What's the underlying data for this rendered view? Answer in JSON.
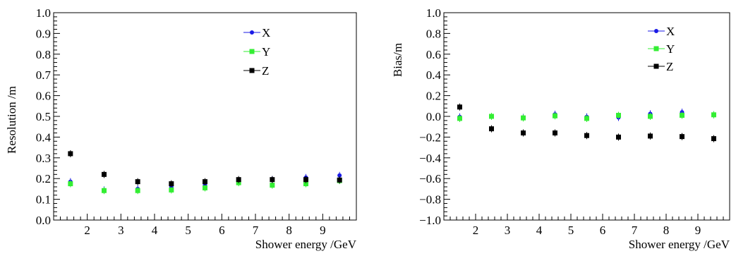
{
  "chart_data": [
    {
      "type": "scatter",
      "title": "",
      "xlabel": "Shower energy /GeV",
      "ylabel": "Resolution /m",
      "xlim": [
        1.0,
        10.0
      ],
      "ylim": [
        0.0,
        1.0
      ],
      "x_ticks": [
        "2",
        "3",
        "4",
        "5",
        "6",
        "7",
        "8",
        "9"
      ],
      "y_ticks": [
        "0.0",
        "0.1",
        "0.2",
        "0.3",
        "0.4",
        "0.5",
        "0.6",
        "0.7",
        "0.8",
        "0.9",
        "1.0"
      ],
      "grid": false,
      "legend_position": "top-right",
      "series": [
        {
          "name": "X",
          "color": "#1a1ae6",
          "marker": "circle",
          "x": [
            1.5,
            2.5,
            3.5,
            4.5,
            5.5,
            6.5,
            7.5,
            8.5,
            9.5
          ],
          "y": [
            0.185,
            0.145,
            0.15,
            0.16,
            0.17,
            0.185,
            0.195,
            0.205,
            0.215
          ]
        },
        {
          "name": "Y",
          "color": "#33ee33",
          "marker": "square",
          "x": [
            1.5,
            2.5,
            3.5,
            4.5,
            5.5,
            6.5,
            7.5,
            8.5,
            9.5
          ],
          "y": [
            0.175,
            0.142,
            0.142,
            0.145,
            0.155,
            0.18,
            0.168,
            0.175,
            0.19
          ]
        },
        {
          "name": "Z",
          "color": "#000000",
          "marker": "square",
          "x": [
            1.5,
            2.5,
            3.5,
            4.5,
            5.5,
            6.5,
            7.5,
            8.5,
            9.5
          ],
          "y": [
            0.32,
            0.22,
            0.185,
            0.175,
            0.185,
            0.195,
            0.195,
            0.195,
            0.193
          ]
        }
      ]
    },
    {
      "type": "scatter",
      "title": "",
      "xlabel": "Shower energy /GeV",
      "ylabel": "Bias/m",
      "xlim": [
        1.0,
        10.0
      ],
      "ylim": [
        -1.0,
        1.0
      ],
      "x_ticks": [
        "2",
        "3",
        "4",
        "5",
        "6",
        "7",
        "8",
        "9"
      ],
      "y_ticks": [
        "−1.0",
        "−0.8",
        "−0.6",
        "−0.4",
        "−0.2",
        "0.0",
        "0.2",
        "0.4",
        "0.6",
        "0.8",
        "1.0"
      ],
      "grid": false,
      "legend_position": "top-right",
      "series": [
        {
          "name": "X",
          "color": "#1a1ae6",
          "marker": "circle",
          "x": [
            1.5,
            2.5,
            3.5,
            4.5,
            5.5,
            6.5,
            7.5,
            8.5,
            9.5
          ],
          "y": [
            -0.005,
            0.0,
            -0.01,
            0.02,
            -0.005,
            -0.01,
            0.025,
            0.04,
            0.015
          ]
        },
        {
          "name": "Y",
          "color": "#33ee33",
          "marker": "square",
          "x": [
            1.5,
            2.5,
            3.5,
            4.5,
            5.5,
            6.5,
            7.5,
            8.5,
            9.5
          ],
          "y": [
            -0.02,
            0.0,
            -0.015,
            0.005,
            -0.02,
            0.01,
            0.0,
            0.01,
            0.015
          ]
        },
        {
          "name": "Z",
          "color": "#000000",
          "marker": "square",
          "x": [
            1.5,
            2.5,
            3.5,
            4.5,
            5.5,
            6.5,
            7.5,
            8.5,
            9.5
          ],
          "y": [
            0.09,
            -0.12,
            -0.16,
            -0.16,
            -0.185,
            -0.2,
            -0.19,
            -0.195,
            -0.215
          ]
        }
      ]
    }
  ]
}
